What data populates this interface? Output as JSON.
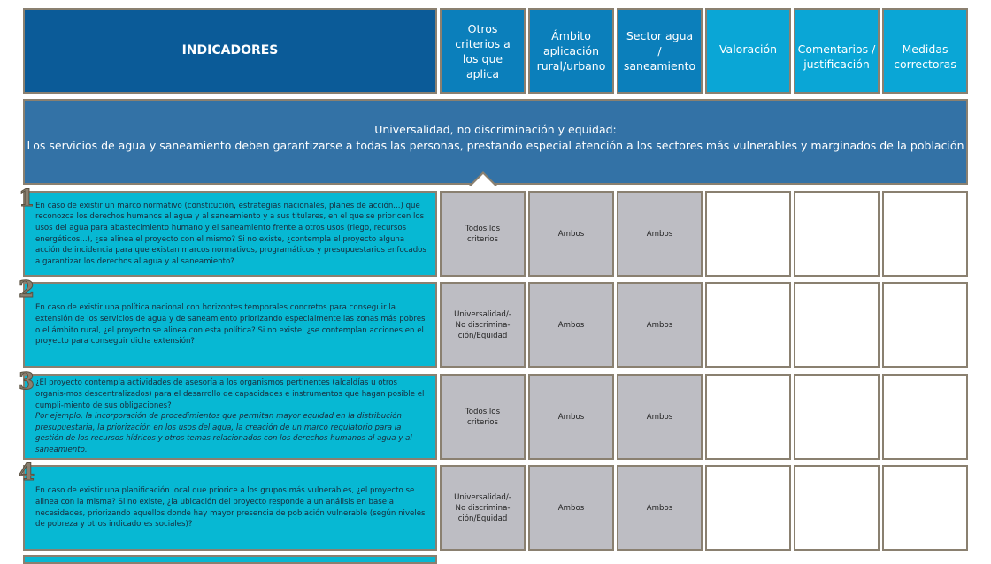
{
  "header": {
    "indicadores": "INDICADORES",
    "otros": "Otros criterios a los que aplica",
    "ambito": "Ámbito aplicación rural/urbano",
    "sector": "Sector agua / saneamiento",
    "valoracion": "Valoración",
    "comentarios": "Comentarios / justificación",
    "medidas": "Medidas correctoras"
  },
  "banner": {
    "title": "Universalidad, no discriminación y equidad:",
    "text": "Los servicios de agua y saneamiento deben garantizarse a todas las personas, prestando especial atención a los sectores más vulnerables y marginados de la población"
  },
  "rows": [
    {
      "num": "1",
      "question": "En caso de existir un marco normativo (constitución, estrategias nacionales, planes de acción...) que reconozca los derechos humanos al agua y al saneamiento y a sus titulares, en el que se prioricen los usos del agua para abastecimiento humano y el saneamiento frente a otros usos (riego, recursos energéticos...), ¿se alinea el proyecto con el mismo? Si no existe, ¿contempla el proyecto alguna acción de incidencia para que existan marcos normativos, programáticos y presupuestarios enfocados a garantizar los derechos al agua y al saneamiento?",
      "example": "",
      "otros": "Todos los criterios",
      "ambito": "Ambos",
      "sector": "Ambos"
    },
    {
      "num": "2",
      "question": "En caso de existir una política nacional con horizontes temporales concretos para conseguir la extensión de los servicios de agua y de saneamiento priorizando especialmente las zonas más pobres o el ámbito rural, ¿el proyecto se alinea con esta política? Si no existe, ¿se contemplan acciones en el proyecto para conseguir dicha extensión?",
      "example": "",
      "otros": "Universalidad/-No discrimina-ción/Equidad",
      "ambito": "Ambos",
      "sector": "Ambos"
    },
    {
      "num": "3",
      "question": "¿El proyecto contempla actividades de asesoría a los organismos pertinentes (alcaldías u otros organis-mos descentralizados) para el desarrollo de capacidades e instrumentos que hagan posible el cumpli-miento de sus obligaciones?",
      "example": "Por ejemplo, la incorporación de procedimientos que permitan mayor equidad en la distribución presupuestaria, la priorización en los usos del agua, la creación de un marco regulatorio para la gestión de los recursos hídricos y otros temas relacionados con los derechos humanos al agua y al saneamiento.",
      "otros": "Todos los criterios",
      "ambito": "Ambos",
      "sector": "Ambos"
    },
    {
      "num": "4",
      "question": "En caso de existir una planificación local que priorice a los grupos más vulnerables, ¿el proyecto se alinea con la misma? Si no existe, ¿la ubicación del proyecto responde a un análisis en base a necesidades, priorizando aquellos donde hay mayor presencia de población vulnerable (según niveles de pobreza y otros indicadores sociales)?",
      "example": "",
      "otros": "Universalidad/-No discrimina-ción/Equidad",
      "ambito": "Ambos",
      "sector": "Ambos"
    }
  ]
}
